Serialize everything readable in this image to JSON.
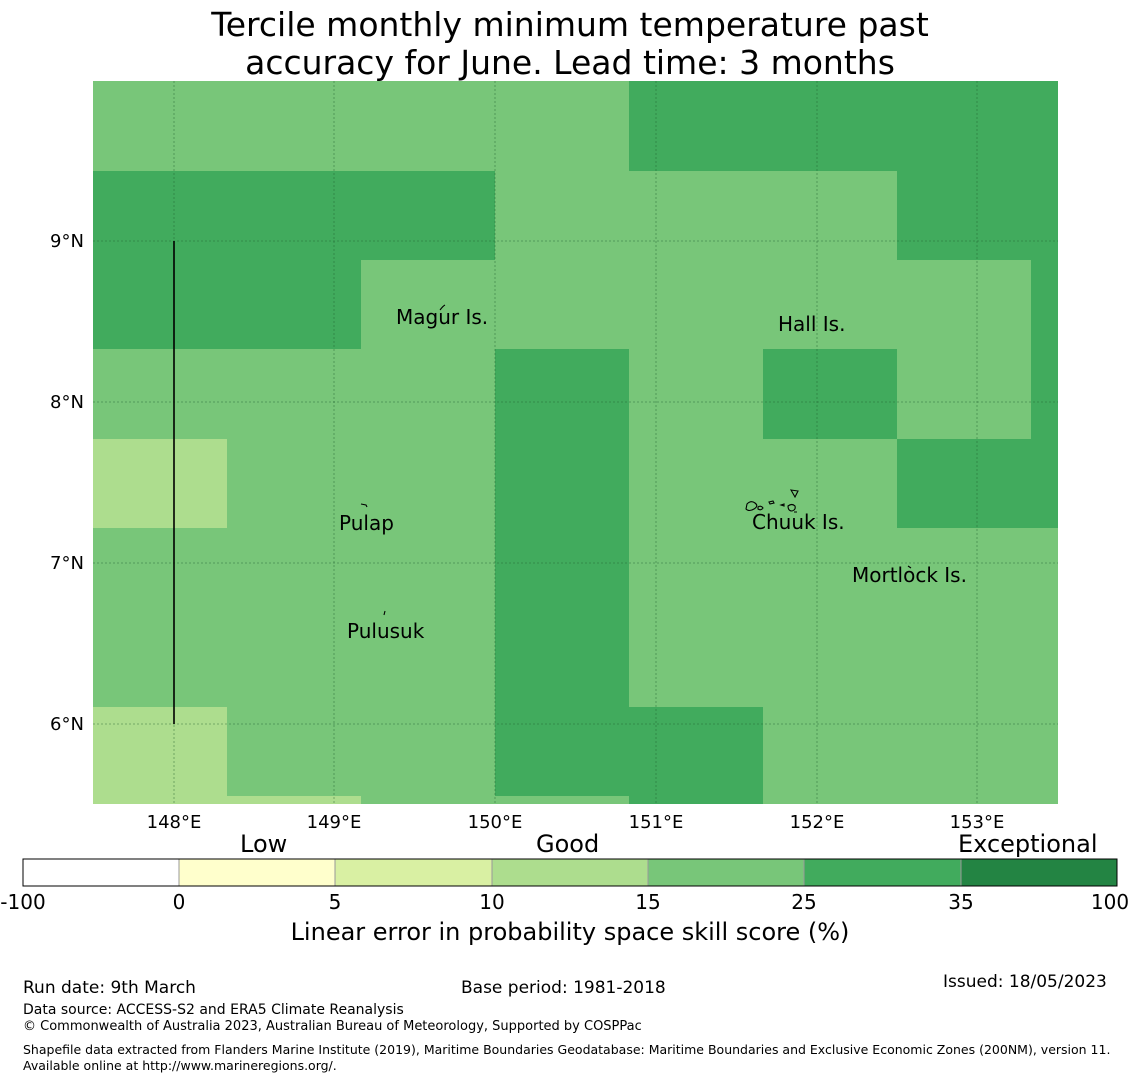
{
  "title": {
    "line1": "Tercile monthly minimum temperature past",
    "line2": "accuracy for June. Lead time: 3 months"
  },
  "map": {
    "lon_range": [
      147.5,
      153.5
    ],
    "lat_range": [
      5.5,
      10.0
    ],
    "lat_ticks": [
      "9°N",
      "8°N",
      "7°N",
      "6°N"
    ],
    "lon_ticks": [
      "148°E",
      "149°E",
      "150°E",
      "151°E",
      "152°E",
      "153°E"
    ],
    "grid_lines": true,
    "places": [
      "Magur Is.",
      "Hall Is.",
      "Pulap",
      "Chuuk Is.",
      "Mortlock Is.",
      "Pulusuk"
    ]
  },
  "legend": {
    "categories": [
      "Low",
      "Good",
      "Exceptional"
    ],
    "bins": [
      {
        "from": "-100",
        "to": "0",
        "color": "#ffffff"
      },
      {
        "from": "0",
        "to": "5",
        "color": "#ffffcc"
      },
      {
        "from": "5",
        "to": "10",
        "color": "#d9f0a3"
      },
      {
        "from": "10",
        "to": "15",
        "color": "#addd8e"
      },
      {
        "from": "15",
        "to": "25",
        "color": "#78c679"
      },
      {
        "from": "25",
        "to": "35",
        "color": "#41ab5d"
      },
      {
        "from": "35",
        "to": "100",
        "color": "#238443"
      }
    ],
    "ticks": [
      "-100",
      "0",
      "5",
      "10",
      "15",
      "25",
      "35",
      "100"
    ],
    "label": "Linear error in probability space skill score (%)"
  },
  "footer": {
    "run_date": "Run date: 9th March",
    "base_period": "Base period: 1981-2018",
    "issued": "Issued: 18/05/2023",
    "data_source": "Data source: ACCESS-S2 and ERA5 Climate Reanalysis",
    "copyright": "© Commonwealth of Australia 2023, Australian Bureau of Meteorology, Supported by COSPPac",
    "shapefile": "Shapefile data extracted from Flanders Marine Institute (2019), Maritime Boundaries Geodatabase: Maritime Boundaries and Exclusive Economic Zones (200NM), version 11. Available online at http://www.marineregions.org/."
  }
}
